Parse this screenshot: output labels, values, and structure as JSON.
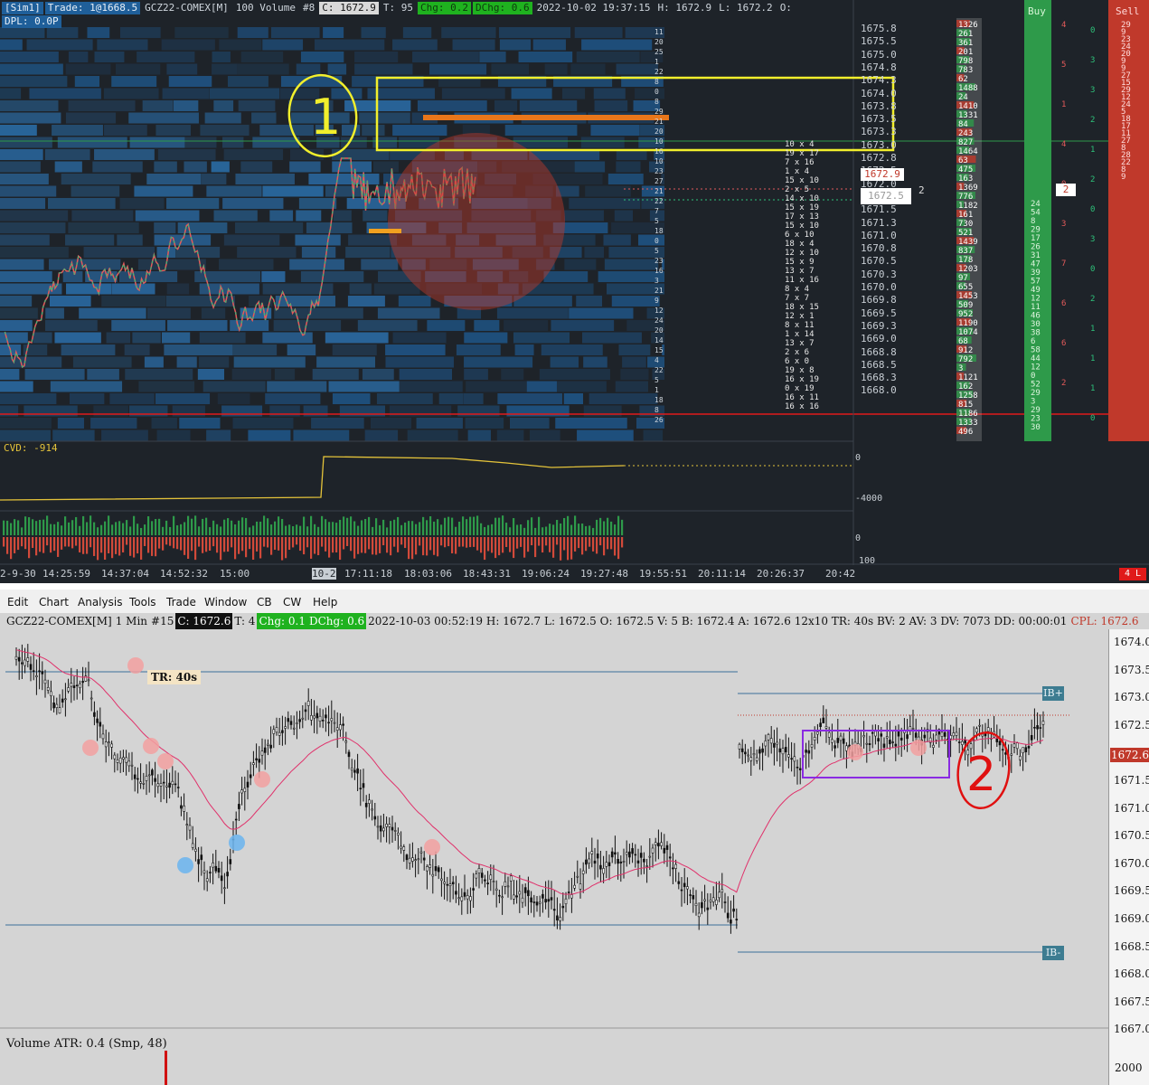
{
  "top_panel": {
    "header": {
      "sim": "[Sim1]",
      "trade": "Trade: 1@1668.5",
      "symbol": "GCZ22-COMEX[M]",
      "bar_type": "100 Volume",
      "bar_no": "#8",
      "close": "C: 1672.9",
      "ticks": "T: 95",
      "chg": "Chg: 0.2",
      "dchg": "DChg: 0.6",
      "datetime": "2022-10-02 19:37:15",
      "high": "H: 1672.9",
      "low": "L: 1672.2",
      "open": "O:",
      "dpl": "DPL: 0.0P"
    },
    "price_ticks": [
      "1675.8",
      "1675.5",
      "1675.0",
      "1674.8",
      "1674.3",
      "1674.0",
      "1673.8",
      "1673.5",
      "1673.3",
      "1673.0",
      "1672.8",
      "1672.5",
      "1672.0",
      "1671.8",
      "1671.5",
      "1671.3",
      "1671.0",
      "1670.8",
      "1670.5",
      "1670.3",
      "1670.0",
      "1669.8",
      "1669.5",
      "1669.3",
      "1669.0",
      "1668.8",
      "1668.5",
      "1668.3",
      "1668.0"
    ],
    "current_price_label": "1672.9",
    "current_price_label2": "1672.5",
    "ladder_mid_value": "2",
    "buy_box_value": "2",
    "cvd_label": "CVD: -914",
    "cvd_axis": [
      "0",
      "-4000"
    ],
    "volume_axis": [
      "0",
      "100"
    ],
    "time_ticks": [
      "2-9-30",
      "14:25:59",
      "14:37:04",
      "14:52:32",
      "15:00",
      "10-2",
      "17:11:18",
      "18:03:06",
      "18:43:31",
      "19:06:24",
      "19:27:48",
      "19:55:51",
      "20:11:14",
      "20:26:37",
      "20:42"
    ],
    "buy_label": "Buy",
    "sell_label": "Sell",
    "corner_badge": "4 L",
    "annotation_1": "1",
    "colors": {
      "bg": "#1e2329",
      "heatmap": "#1f5f9a",
      "yellow": "#f2ef2c",
      "red_circle": "#c0392b",
      "green_col": "#2e9a4a",
      "sell_col": "#c0392b",
      "cvd": "#e4c33a"
    }
  },
  "bottom_panel": {
    "menu": [
      "Edit",
      "Chart",
      "Analysis",
      "Tools",
      "Trade",
      "Window",
      "CB",
      "CW",
      "Help"
    ],
    "header": {
      "symbol": "GCZ22-COMEX[M]",
      "interval": "1 Min",
      "bar_no": "#15",
      "close": "C: 1672.6",
      "ticks": "T: 4",
      "chg": "Chg: 0.1",
      "dchg": "DChg: 0.6",
      "rest": "2022-10-03 00:52:19 H: 1672.7 L: 1672.5 O: 1672.5 V: 5 B: 1672.4 A: 1672.6 12x10 TR: 40s BV: 2 AV: 3 DV: 7073 DD: 00:00:01",
      "cpl": "CPL: 1672.6"
    },
    "price_ticks": [
      "1674.0",
      "1673.5",
      "1673.0",
      "1672.5",
      "1672.0",
      "1671.5",
      "1671.0",
      "1670.5",
      "1670.0",
      "1669.5",
      "1669.0",
      "1668.5",
      "1668.0",
      "1667.5",
      "1667.0"
    ],
    "current_price": "1672.6",
    "tr_label": "TR: 40s",
    "ib_plus": "IB+",
    "ib_minus": "IB-",
    "annotation_2": "2",
    "volume_label": "Volume  ATR: 0.4  (Smp, 48)",
    "volume_axis": "2000",
    "colors": {
      "bg": "#d4d4d4",
      "ma": "#e0306a",
      "ib_line": "#3d6f9a",
      "purple_box": "#8a2be2",
      "bubble_red": "#f2a0a0",
      "bubble_blue": "#6ab4ee",
      "annot_red": "#e01010"
    }
  }
}
